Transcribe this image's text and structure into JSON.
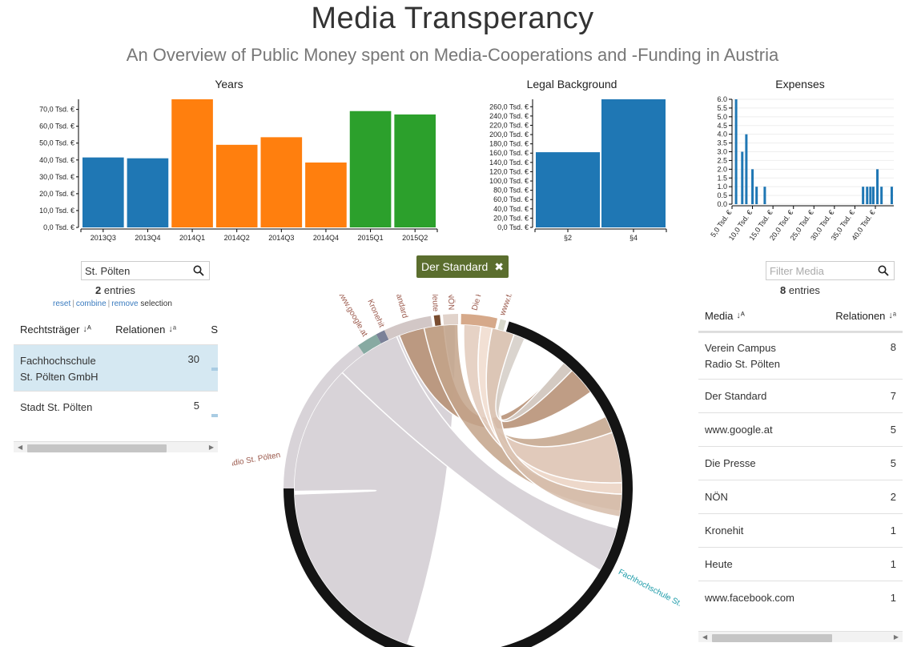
{
  "header": {
    "title": "Media Transperancy",
    "subtitle": "An Overview of Public Money spent on Media-Cooperations and -Funding in Austria"
  },
  "colors": {
    "blue": "#1f77b4",
    "orange": "#ff7f0e",
    "green": "#2ca02c",
    "tag_bg": "#5b6e2e",
    "selected_row": "#d5e8f2"
  },
  "chart_data": [
    {
      "type": "bar",
      "title": "Years",
      "categories": [
        "2013Q3",
        "2013Q4",
        "2014Q1",
        "2014Q2",
        "2014Q3",
        "2014Q4",
        "2015Q1",
        "2015Q2"
      ],
      "values": [
        41500,
        41000,
        76000,
        49000,
        53500,
        38500,
        69000,
        67000
      ],
      "bar_colors": [
        "#1f77b4",
        "#1f77b4",
        "#ff7f0e",
        "#ff7f0e",
        "#ff7f0e",
        "#ff7f0e",
        "#2ca02c",
        "#2ca02c"
      ],
      "y_ticks": [
        "0,0 Tsd. €",
        "10,0 Tsd. €",
        "20,0 Tsd. €",
        "30,0 Tsd. €",
        "40,0 Tsd. €",
        "50,0 Tsd. €",
        "60,0 Tsd. €",
        "70,0 Tsd. €"
      ],
      "ylim": [
        0,
        76000
      ]
    },
    {
      "type": "bar",
      "title": "Legal Background",
      "categories": [
        "§2",
        "§4"
      ],
      "values": [
        162000,
        276000
      ],
      "bar_colors": [
        "#1f77b4",
        "#1f77b4"
      ],
      "y_ticks": [
        "0,0 Tsd. €",
        "20,0 Tsd. €",
        "40,0 Tsd. €",
        "60,0 Tsd. €",
        "80,0 Tsd. €",
        "100,0 Tsd. €",
        "120,0 Tsd. €",
        "140,0 Tsd. €",
        "160,0 Tsd. €",
        "180,0 Tsd. €",
        "200,0 Tsd. €",
        "220,0 Tsd. €",
        "240,0 Tsd. €",
        "260,0 Tsd. €"
      ],
      "ylim": [
        0,
        276000
      ]
    },
    {
      "type": "bar",
      "title": "Expenses",
      "x": [
        6000,
        7500,
        8500,
        10000,
        11000,
        13000,
        37000,
        38000,
        38800,
        39500,
        40500,
        41500,
        44000
      ],
      "values": [
        6,
        3,
        4,
        2,
        1,
        1,
        1,
        1,
        1,
        1,
        2,
        1,
        1
      ],
      "y_ticks": [
        "0.0",
        "0.5",
        "1.0",
        "1.5",
        "2.0",
        "2.5",
        "3.0",
        "3.5",
        "4.0",
        "4.5",
        "5.0",
        "5.5",
        "6.0"
      ],
      "x_ticks": [
        "5,0 Tsd. €",
        "10,0 Tsd. €",
        "15,0 Tsd. €",
        "20,0 Tsd. €",
        "25,0 Tsd. €",
        "30,0 Tsd. €",
        "35,0 Tsd. €",
        "40,0 Tsd. €"
      ],
      "ylim": [
        0,
        6
      ]
    }
  ],
  "left_panel": {
    "search_value": "St. Pölten",
    "entries_count": "2",
    "entries_label": "entries",
    "links": {
      "reset": "reset",
      "combine": "combine",
      "remove": "remove",
      "selection": "selection"
    },
    "columns": {
      "col1": "Rechtsträger",
      "col2": "Relationen",
      "col3": "S"
    },
    "rows": [
      {
        "name_line1": "Fachhochschule",
        "name_line2": "St. Pölten GmbH",
        "relationen": "30"
      },
      {
        "name_line1": "Stadt St. Pölten",
        "name_line2": "",
        "relationen": "5"
      }
    ]
  },
  "filter_tag": {
    "label": "Der Standard"
  },
  "chord": {
    "media_labels": [
      "Der Standard",
      "Heute",
      "NÖN",
      "Die Presse",
      "www.facebook.com",
      "Kronehit",
      "www.google.at",
      "mpus Radio St. Pölten"
    ],
    "org_label": "Fachhochschule St. Pölten G"
  },
  "right_panel": {
    "search_placeholder": "Filter Media",
    "entries_count": "8",
    "entries_label": "entries",
    "columns": {
      "col1": "Media",
      "col2": "Relationen"
    },
    "rows": [
      {
        "name_line1": "Verein Campus",
        "name_line2": "Radio St. Pölten",
        "relationen": "8"
      },
      {
        "name_line1": "Der Standard",
        "name_line2": "",
        "relationen": "7"
      },
      {
        "name_line1": "www.google.at",
        "name_line2": "",
        "relationen": "5"
      },
      {
        "name_line1": "Die Presse",
        "name_line2": "",
        "relationen": "5"
      },
      {
        "name_line1": "NÖN",
        "name_line2": "",
        "relationen": "2"
      },
      {
        "name_line1": "Kronehit",
        "name_line2": "",
        "relationen": "1"
      },
      {
        "name_line1": "Heute",
        "name_line2": "",
        "relationen": "1"
      },
      {
        "name_line1": "www.facebook.com",
        "name_line2": "",
        "relationen": "1"
      }
    ]
  }
}
